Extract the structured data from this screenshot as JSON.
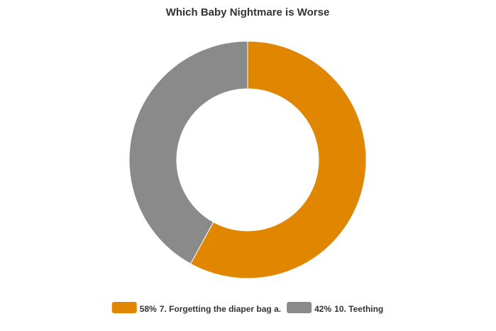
{
  "chart_data": {
    "type": "donut",
    "title": "Which Baby Nightmare is Worse",
    "categories": [
      "7. Forgetting the diaper bag a.",
      "10. Teething"
    ],
    "values": [
      58,
      42
    ],
    "value_labels": [
      "58%",
      "42%"
    ],
    "colors": [
      "#e08600",
      "#8a8a8a"
    ]
  }
}
